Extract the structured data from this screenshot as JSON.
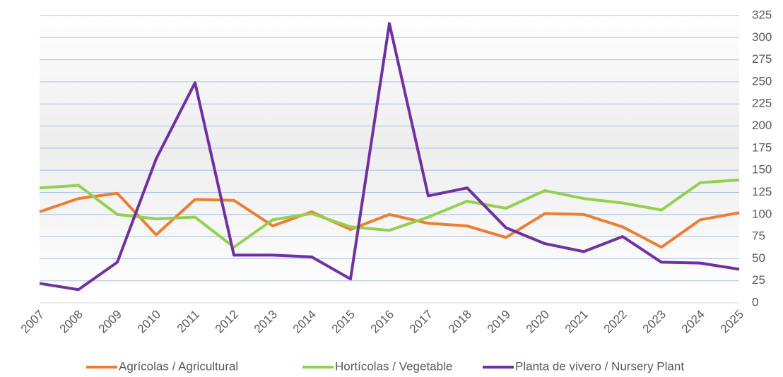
{
  "chart_data": {
    "type": "line",
    "categories": [
      "2007",
      "2008",
      "2009",
      "2010",
      "2011",
      "2012",
      "2013",
      "2014",
      "2015",
      "2016",
      "2017",
      "2018",
      "2019",
      "2020",
      "2021",
      "2022",
      "2023",
      "2024",
      "2025"
    ],
    "series": [
      {
        "name": "Agrícolas / Agricultural",
        "color": "#ed7d31",
        "values": [
          103,
          118,
          124,
          77,
          117,
          116,
          87,
          103,
          83,
          100,
          90,
          87,
          74,
          101,
          100,
          86,
          63,
          94,
          102
        ]
      },
      {
        "name": "Hortícolas / Vegetable",
        "color": "#92d050",
        "values": [
          130,
          133,
          100,
          95,
          97,
          63,
          94,
          101,
          86,
          82,
          97,
          115,
          107,
          127,
          118,
          113,
          105,
          136,
          139
        ]
      },
      {
        "name": "Planta de vivero / Nursery Plant",
        "color": "#7030a0",
        "values": [
          22,
          15,
          46,
          163,
          249,
          54,
          54,
          52,
          27,
          316,
          121,
          130,
          85,
          67,
          58,
          75,
          46,
          45,
          38
        ]
      }
    ],
    "ylim": [
      0,
      325
    ],
    "yticks": [
      0,
      25,
      50,
      75,
      100,
      125,
      150,
      175,
      200,
      225,
      250,
      275,
      300,
      325
    ],
    "grid": true,
    "legend": "bottom"
  }
}
